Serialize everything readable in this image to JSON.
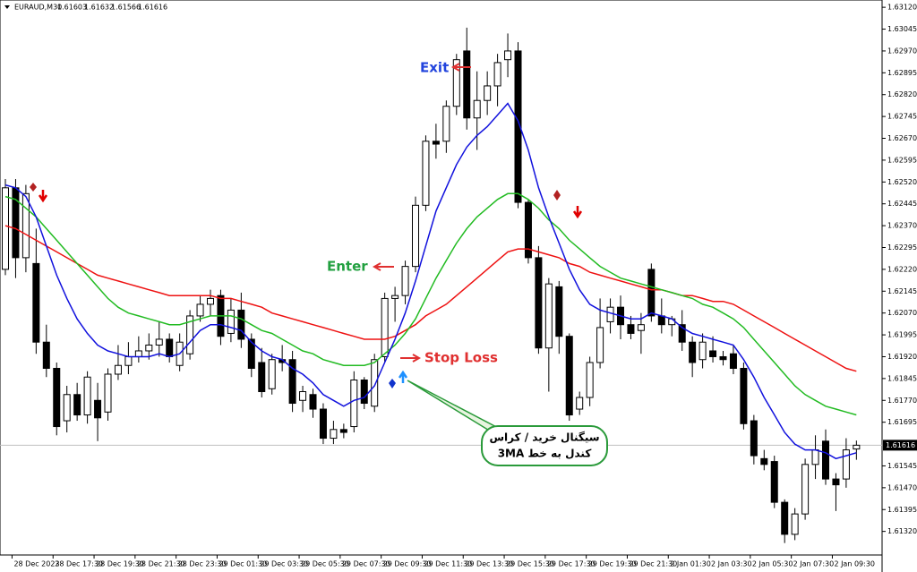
{
  "chart_data": {
    "type": "candlestick",
    "symbol": "EURAUD,M30",
    "categories": [
      null,
      "28 Dec 2023",
      null,
      null,
      null,
      "28 Dec 17:30",
      null,
      null,
      null,
      "28 Dec 19:30",
      null,
      null,
      null,
      "28 Dec 21:30",
      null,
      null,
      null,
      "28 Dec 23:30",
      null,
      null,
      null,
      "29 Dec 01:30",
      null,
      null,
      null,
      "29 Dec 03:30",
      null,
      null,
      null,
      "29 Dec 05:30",
      null,
      null,
      null,
      "29 Dec 07:30",
      null,
      null,
      null,
      "29 Dec 09:30",
      null,
      null,
      null,
      "29 Dec 11:30",
      null,
      null,
      null,
      "29 Dec 13:30",
      null,
      null,
      null,
      "29 Dec 15:30",
      null,
      null,
      null,
      "29 Dec 17:30",
      null,
      null,
      null,
      "29 Dec 19:30",
      null,
      null,
      null,
      "29 Dec 21:30",
      null,
      null,
      null,
      "2 Jan 01:30",
      null,
      null,
      null,
      "2 Jan 03:30",
      null,
      null,
      null,
      "2 Jan 05:30",
      null,
      null,
      null,
      "2 Jan 07:30",
      null,
      null,
      null,
      "2 Jan 09:30",
      null,
      null
    ],
    "open": [
      1.6222,
      1.625,
      1.6226,
      1.6224,
      1.6197,
      1.6188,
      1.617,
      1.6179,
      1.6172,
      1.6177,
      1.6173,
      1.6186,
      1.6189,
      1.6192,
      1.6194,
      1.6196,
      1.6198,
      1.6189,
      1.6193,
      1.6206,
      1.621,
      1.6213,
      1.62,
      1.6208,
      1.6198,
      1.619,
      1.6181,
      1.6191,
      1.6191,
      1.6177,
      1.6179,
      1.6174,
      1.6164,
      1.6167,
      1.6168,
      1.6184,
      1.6175,
      1.6192,
      1.6212,
      1.6213,
      1.6223,
      1.6244,
      1.6266,
      1.6266,
      1.6278,
      1.6297,
      1.6274,
      1.628,
      1.6285,
      1.6294,
      1.6297,
      1.6245,
      1.6226,
      1.6195,
      1.6216,
      1.6199,
      1.6174,
      1.6178,
      1.619,
      1.6204,
      1.6209,
      1.6203,
      1.6201,
      1.6222,
      1.6206,
      1.6203,
      1.6203,
      1.6197,
      1.6191,
      1.6194,
      1.6192,
      1.6193,
      1.6188,
      1.617,
      1.6157,
      1.6156,
      1.6142,
      1.6131,
      1.6138,
      1.6155,
      1.6163,
      1.615,
      1.615,
      1.61603
    ],
    "high": [
      1.6253,
      1.6253,
      1.6251,
      1.6236,
      1.6203,
      1.619,
      1.6182,
      1.6183,
      1.6187,
      1.6183,
      1.6188,
      1.6196,
      1.6197,
      1.6199,
      1.62,
      1.6204,
      1.62,
      1.62,
      1.6208,
      1.6213,
      1.6215,
      1.6215,
      1.6212,
      1.6214,
      1.62,
      1.6195,
      1.6193,
      1.6196,
      1.6194,
      1.6182,
      1.6181,
      1.6176,
      1.617,
      1.6169,
      1.6187,
      1.6185,
      1.6193,
      1.6214,
      1.6216,
      1.6225,
      1.6247,
      1.6268,
      1.6272,
      1.628,
      1.6296,
      1.6305,
      1.629,
      1.629,
      1.6296,
      1.6303,
      1.63,
      1.6246,
      1.623,
      1.6219,
      1.6218,
      1.62,
      1.618,
      1.6192,
      1.6212,
      1.6212,
      1.6213,
      1.6206,
      1.6207,
      1.6224,
      1.6212,
      1.6206,
      1.6208,
      1.6199,
      1.62,
      1.6199,
      1.6194,
      1.6196,
      1.619,
      1.6172,
      1.616,
      1.6158,
      1.6143,
      1.614,
      1.6157,
      1.6165,
      1.6167,
      1.6152,
      1.6164,
      1.61632
    ],
    "low": [
      1.622,
      1.6219,
      1.6221,
      1.6193,
      1.6185,
      1.6165,
      1.6166,
      1.617,
      1.6169,
      1.6163,
      1.617,
      1.6184,
      1.6186,
      1.619,
      1.6191,
      1.6192,
      1.619,
      1.6187,
      1.6191,
      1.6204,
      1.6206,
      1.6196,
      1.6197,
      1.6195,
      1.6185,
      1.6178,
      1.6179,
      1.6187,
      1.6173,
      1.6173,
      1.6171,
      1.6162,
      1.6162,
      1.6164,
      1.6166,
      1.6174,
      1.6173,
      1.619,
      1.6204,
      1.621,
      1.6221,
      1.6242,
      1.626,
      1.6262,
      1.6275,
      1.627,
      1.6263,
      1.6275,
      1.6278,
      1.6288,
      1.6243,
      1.6224,
      1.6193,
      1.618,
      1.6193,
      1.617,
      1.6172,
      1.6175,
      1.6188,
      1.62,
      1.6198,
      1.6198,
      1.6193,
      1.6204,
      1.62,
      1.6199,
      1.6194,
      1.6185,
      1.6188,
      1.619,
      1.6189,
      1.6186,
      1.6167,
      1.6155,
      1.6153,
      1.614,
      1.6128,
      1.6129,
      1.6136,
      1.615,
      1.6148,
      1.6139,
      1.6147,
      1.61566
    ],
    "close": [
      1.625,
      1.6226,
      1.6248,
      1.6197,
      1.6188,
      1.6168,
      1.6179,
      1.6172,
      1.6185,
      1.6171,
      1.6186,
      1.6189,
      1.6192,
      1.6194,
      1.6196,
      1.6198,
      1.6192,
      1.6197,
      1.6206,
      1.621,
      1.6212,
      1.6199,
      1.6208,
      1.6198,
      1.6188,
      1.618,
      1.6191,
      1.619,
      1.6176,
      1.618,
      1.6174,
      1.6164,
      1.6167,
      1.6166,
      1.6184,
      1.6176,
      1.6191,
      1.6212,
      1.6213,
      1.6223,
      1.6244,
      1.6266,
      1.6265,
      1.6278,
      1.6294,
      1.6274,
      1.628,
      1.6285,
      1.6293,
      1.6297,
      1.6245,
      1.6226,
      1.6195,
      1.6217,
      1.6199,
      1.6172,
      1.6178,
      1.619,
      1.6202,
      1.6209,
      1.6203,
      1.62,
      1.6203,
      1.6206,
      1.6203,
      1.6205,
      1.6197,
      1.619,
      1.6197,
      1.6192,
      1.6191,
      1.6188,
      1.6169,
      1.6158,
      1.6155,
      1.6142,
      1.6131,
      1.6138,
      1.6155,
      1.616,
      1.615,
      1.6148,
      1.616,
      1.61616
    ],
    "bull_color": "#ffffff",
    "bear_color": "#000000",
    "lines": [
      {
        "color": "#ee1111",
        "values": [
          1.6237,
          1.6236,
          1.6234,
          1.6232,
          1.623,
          1.6228,
          1.6226,
          1.6224,
          1.6222,
          1.622,
          1.6219,
          1.6218,
          1.6217,
          1.6216,
          1.6215,
          1.6214,
          1.6213,
          1.6213,
          1.6213,
          1.6213,
          1.6213,
          1.6212,
          1.6212,
          1.6211,
          1.621,
          1.6209,
          1.6207,
          1.6206,
          1.6205,
          1.6204,
          1.6203,
          1.6202,
          1.6201,
          1.62,
          1.6199,
          1.6198,
          1.6198,
          1.6198,
          1.6199,
          1.6201,
          1.6203,
          1.6206,
          1.6208,
          1.621,
          1.6213,
          1.6216,
          1.6219,
          1.6222,
          1.6225,
          1.6228,
          1.6229,
          1.6229,
          1.6228,
          1.6227,
          1.6226,
          1.6224,
          1.6223,
          1.6221,
          1.622,
          1.6219,
          1.6218,
          1.6217,
          1.6216,
          1.6215,
          1.6215,
          1.6214,
          1.6213,
          1.6213,
          1.6212,
          1.6211,
          1.6211,
          1.621,
          1.6208,
          1.6206,
          1.6204,
          1.6202,
          1.62,
          1.6198,
          1.6196,
          1.6194,
          1.6192,
          1.619,
          1.6188,
          1.6187
        ]
      },
      {
        "color": "#22bb22",
        "values": [
          1.6247,
          1.6246,
          1.6243,
          1.624,
          1.6236,
          1.6232,
          1.6228,
          1.6224,
          1.622,
          1.6216,
          1.6212,
          1.6209,
          1.6207,
          1.6206,
          1.6205,
          1.6204,
          1.6203,
          1.6203,
          1.6204,
          1.6205,
          1.6206,
          1.6206,
          1.6206,
          1.6205,
          1.6203,
          1.6201,
          1.62,
          1.6198,
          1.6196,
          1.6194,
          1.6193,
          1.6191,
          1.619,
          1.6189,
          1.6189,
          1.6189,
          1.619,
          1.6193,
          1.6196,
          1.62,
          1.6205,
          1.6212,
          1.6219,
          1.6225,
          1.6231,
          1.6236,
          1.624,
          1.6243,
          1.6246,
          1.6248,
          1.6248,
          1.6246,
          1.6243,
          1.6239,
          1.6236,
          1.6232,
          1.6229,
          1.6226,
          1.6223,
          1.6221,
          1.6219,
          1.6218,
          1.6217,
          1.6216,
          1.6215,
          1.6214,
          1.6213,
          1.6212,
          1.621,
          1.6209,
          1.6207,
          1.6205,
          1.6202,
          1.6198,
          1.6194,
          1.619,
          1.6186,
          1.6182,
          1.6179,
          1.6177,
          1.6175,
          1.6174,
          1.6173,
          1.6172
        ]
      },
      {
        "color": "#1111dd",
        "values": [
          1.6251,
          1.625,
          1.6247,
          1.624,
          1.623,
          1.622,
          1.6212,
          1.6205,
          1.62,
          1.6196,
          1.6194,
          1.6193,
          1.6192,
          1.6192,
          1.6192,
          1.6193,
          1.6192,
          1.6193,
          1.6197,
          1.6201,
          1.6203,
          1.6203,
          1.6202,
          1.6201,
          1.6197,
          1.6194,
          1.6192,
          1.6191,
          1.6188,
          1.6186,
          1.6183,
          1.6179,
          1.6177,
          1.6175,
          1.6177,
          1.6178,
          1.6182,
          1.619,
          1.6198,
          1.6207,
          1.6218,
          1.623,
          1.6242,
          1.625,
          1.6258,
          1.6264,
          1.6268,
          1.6271,
          1.6275,
          1.6279,
          1.6273,
          1.6263,
          1.625,
          1.624,
          1.6231,
          1.6222,
          1.6215,
          1.621,
          1.6208,
          1.6207,
          1.6206,
          1.6205,
          1.6205,
          1.6207,
          1.6206,
          1.6205,
          1.6202,
          1.62,
          1.6199,
          1.6198,
          1.6197,
          1.6196,
          1.6191,
          1.6185,
          1.6178,
          1.6172,
          1.6166,
          1.6162,
          1.616,
          1.616,
          1.6159,
          1.6157,
          1.6158,
          1.6159
        ]
      }
    ],
    "ylim": [
      1.63145,
      1.61239
    ],
    "yticks": [
      {
        "value": 1.6312,
        "label": "1.63120"
      },
      1.63045,
      {
        "value": 1.6297,
        "label": "1.62970"
      },
      1.62895,
      {
        "value": 1.6282,
        "label": "1.62820"
      },
      1.62745,
      {
        "value": 1.6267,
        "label": "1.62670"
      },
      1.62595,
      {
        "value": 1.6252,
        "label": "1.62520"
      },
      1.62445,
      {
        "value": 1.6237,
        "label": "1.62370"
      },
      1.62295,
      {
        "value": 1.6222,
        "label": "1.62220"
      },
      1.62145,
      {
        "value": 1.6207,
        "label": "1.62070"
      },
      1.61995,
      {
        "value": 1.6192,
        "label": "1.61920"
      },
      1.61845,
      {
        "value": 1.6177,
        "label": "1.61770"
      },
      1.61695,
      1.61545,
      {
        "value": 1.6147,
        "label": "1.61470"
      },
      1.61395,
      {
        "value": 1.6132,
        "label": "1.61320"
      }
    ],
    "annotations": {
      "exit": "Exit",
      "enter": "Enter",
      "stop_loss": "Stop Loss",
      "callout": [
        "سیگنال خرید / کراس",
        "کندل به خط 3MA"
      ]
    }
  }
}
